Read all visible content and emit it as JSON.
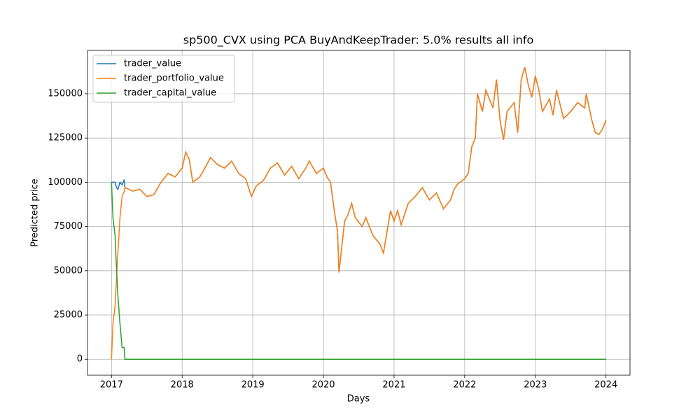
{
  "chart_data": {
    "type": "line",
    "title": "sp500_CVX using PCA BuyAndKeepTrader: 5.0% results all info",
    "x_label": "Days",
    "y_label": "Predicted price",
    "x": [
      2017.0,
      2017.02,
      2017.05,
      2017.07,
      2017.09,
      2017.12,
      2017.15,
      2017.18,
      2017.19,
      2017.3,
      2017.4,
      2017.5,
      2017.6,
      2017.7,
      2017.8,
      2017.9,
      2018.0,
      2018.05,
      2018.1,
      2018.15,
      2018.25,
      2018.35,
      2018.4,
      2018.5,
      2018.6,
      2018.7,
      2018.8,
      2018.9,
      2018.98,
      2019.05,
      2019.15,
      2019.25,
      2019.35,
      2019.45,
      2019.55,
      2019.65,
      2019.75,
      2019.8,
      2019.9,
      2020.0,
      2020.05,
      2020.1,
      2020.15,
      2020.2,
      2020.22,
      2020.25,
      2020.3,
      2020.35,
      2020.4,
      2020.45,
      2020.55,
      2020.6,
      2020.7,
      2020.8,
      2020.85,
      2020.9,
      2020.95,
      2021.0,
      2021.05,
      2021.1,
      2021.2,
      2021.3,
      2021.4,
      2021.5,
      2021.6,
      2021.7,
      2021.8,
      2021.85,
      2021.9,
      2022.0,
      2022.05,
      2022.1,
      2022.15,
      2022.18,
      2022.25,
      2022.3,
      2022.4,
      2022.45,
      2022.5,
      2022.55,
      2022.6,
      2022.7,
      2022.75,
      2022.8,
      2022.85,
      2022.9,
      2022.95,
      2023.0,
      2023.05,
      2023.1,
      2023.2,
      2023.25,
      2023.3,
      2023.4,
      2023.5,
      2023.6,
      2023.7,
      2023.72,
      2023.8,
      2023.85,
      2023.9,
      2023.95,
      2024.0
    ],
    "series": [
      {
        "name": "trader_value",
        "color": "#1f77b4",
        "values": [
          100000,
          100000,
          100000,
          97000,
          96000,
          100000,
          98500,
          101500,
          97000,
          95000,
          96000,
          92000,
          93000,
          100000,
          105000,
          103000,
          108000,
          117000,
          113000,
          100000,
          103000,
          110000,
          114000,
          110000,
          108000,
          112000,
          105000,
          102000,
          92000,
          98000,
          101000,
          108000,
          111000,
          104000,
          109000,
          102000,
          108000,
          112000,
          105000,
          108000,
          103000,
          100000,
          85000,
          72000,
          49000,
          60000,
          78000,
          82000,
          88000,
          80000,
          75000,
          80000,
          70000,
          65000,
          60000,
          72000,
          84000,
          78000,
          84000,
          76000,
          88000,
          92000,
          97000,
          90000,
          94000,
          85000,
          90000,
          96000,
          99000,
          102000,
          105000,
          120000,
          125000,
          150000,
          140000,
          152000,
          142000,
          158000,
          135000,
          124000,
          140000,
          145000,
          128000,
          158000,
          165000,
          155000,
          148000,
          160000,
          152000,
          140000,
          147000,
          138000,
          152000,
          136000,
          140000,
          145000,
          142000,
          150000,
          135000,
          128000,
          127000,
          130000,
          135000
        ]
      },
      {
        "name": "trader_portfolio_value",
        "color": "#ff7f0e",
        "values": [
          0,
          20000,
          30000,
          45000,
          60000,
          80000,
          92000,
          95000,
          97000,
          95000,
          96000,
          92000,
          93000,
          100000,
          105000,
          103000,
          108000,
          117000,
          113000,
          100000,
          103000,
          110000,
          114000,
          110000,
          108000,
          112000,
          105000,
          102000,
          92000,
          98000,
          101000,
          108000,
          111000,
          104000,
          109000,
          102000,
          108000,
          112000,
          105000,
          108000,
          103000,
          100000,
          85000,
          72000,
          49000,
          60000,
          78000,
          82000,
          88000,
          80000,
          75000,
          80000,
          70000,
          65000,
          60000,
          72000,
          84000,
          78000,
          84000,
          76000,
          88000,
          92000,
          97000,
          90000,
          94000,
          85000,
          90000,
          96000,
          99000,
          102000,
          105000,
          120000,
          125000,
          150000,
          140000,
          152000,
          142000,
          158000,
          135000,
          124000,
          140000,
          145000,
          128000,
          158000,
          165000,
          155000,
          148000,
          160000,
          152000,
          140000,
          147000,
          138000,
          152000,
          136000,
          140000,
          145000,
          142000,
          150000,
          135000,
          128000,
          127000,
          130000,
          135000
        ]
      },
      {
        "name": "trader_capital_value",
        "color": "#2ca02c",
        "values": [
          100000,
          80000,
          70000,
          52000,
          36000,
          20000,
          6500,
          6500,
          0,
          0,
          0,
          0,
          0,
          0,
          0,
          0,
          0,
          0,
          0,
          0,
          0,
          0,
          0,
          0,
          0,
          0,
          0,
          0,
          0,
          0,
          0,
          0,
          0,
          0,
          0,
          0,
          0,
          0,
          0,
          0,
          0,
          0,
          0,
          0,
          0,
          0,
          0,
          0,
          0,
          0,
          0,
          0,
          0,
          0,
          0,
          0,
          0,
          0,
          0,
          0,
          0,
          0,
          0,
          0,
          0,
          0,
          0,
          0,
          0,
          0,
          0,
          0,
          0,
          0,
          0,
          0,
          0,
          0,
          0,
          0,
          0,
          0,
          0,
          0,
          0,
          0,
          0,
          0,
          0,
          0,
          0,
          0,
          0,
          0,
          0,
          0,
          0,
          0,
          0,
          0,
          0,
          0,
          0
        ]
      }
    ],
    "xlim": [
      2016.66,
      2024.34
    ],
    "xticks": [
      2017,
      2018,
      2019,
      2020,
      2021,
      2022,
      2023,
      2024
    ],
    "ylim": [
      -9000,
      174500
    ],
    "yticks": [
      0,
      25000,
      50000,
      75000,
      100000,
      125000,
      150000
    ],
    "grid": true,
    "legend": "upper left"
  }
}
